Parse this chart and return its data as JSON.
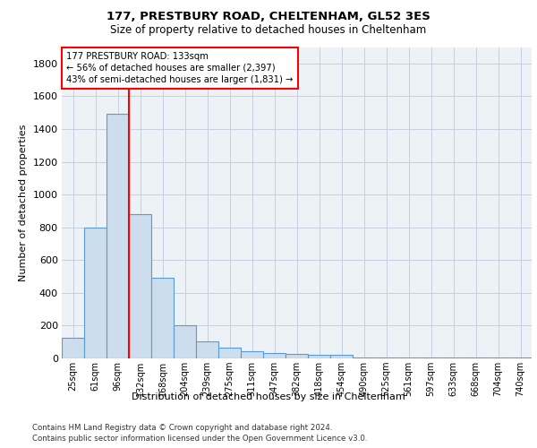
{
  "title1": "177, PRESTBURY ROAD, CHELTENHAM, GL52 3ES",
  "title2": "Size of property relative to detached houses in Cheltenham",
  "xlabel": "Distribution of detached houses by size in Cheltenham",
  "ylabel": "Number of detached properties",
  "categories": [
    "25sqm",
    "61sqm",
    "96sqm",
    "132sqm",
    "168sqm",
    "204sqm",
    "239sqm",
    "275sqm",
    "311sqm",
    "347sqm",
    "382sqm",
    "418sqm",
    "454sqm",
    "490sqm",
    "525sqm",
    "561sqm",
    "597sqm",
    "633sqm",
    "668sqm",
    "704sqm",
    "740sqm"
  ],
  "values": [
    125,
    800,
    1490,
    880,
    490,
    205,
    105,
    65,
    45,
    35,
    30,
    20,
    20,
    5,
    5,
    5,
    5,
    5,
    5,
    5,
    5
  ],
  "bar_color": "#ccdded",
  "bar_edge_color": "#5b9bd5",
  "vline_color": "red",
  "vline_pos": 2.5,
  "annotation_text": "177 PRESTBURY ROAD: 133sqm\n← 56% of detached houses are smaller (2,397)\n43% of semi-detached houses are larger (1,831) →",
  "annotation_box_color": "white",
  "annotation_box_edgecolor": "red",
  "ylim": [
    0,
    1900
  ],
  "yticks": [
    0,
    200,
    400,
    600,
    800,
    1000,
    1200,
    1400,
    1600,
    1800
  ],
  "footnote1": "Contains HM Land Registry data © Crown copyright and database right 2024.",
  "footnote2": "Contains public sector information licensed under the Open Government Licence v3.0.",
  "bg_color": "#edf2f7",
  "grid_color": "#c5cfe0"
}
